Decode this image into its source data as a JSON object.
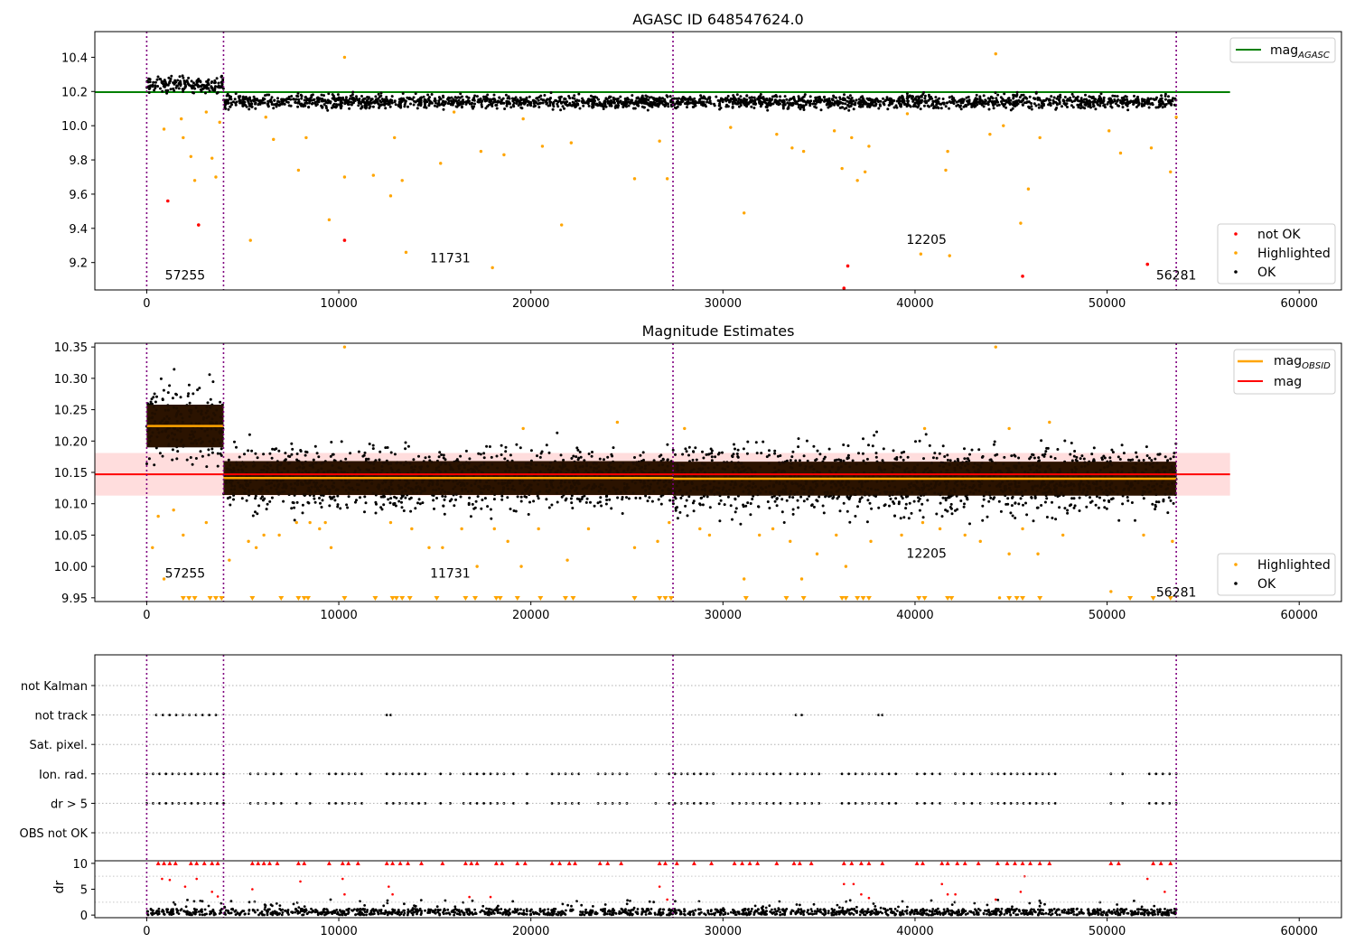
{
  "chart_data": [
    {
      "type": "scatter",
      "title": "AGASC ID 648547624.0",
      "xlim": [
        -2700,
        62200
      ],
      "ylim": [
        9.04,
        10.55
      ],
      "xticks": [
        0,
        10000,
        20000,
        30000,
        40000,
        50000,
        60000
      ],
      "yticks": [
        9.2,
        9.4,
        9.6,
        9.8,
        10.0,
        10.2,
        10.4
      ],
      "ytick_labels": [
        "9.2",
        "9.4",
        "9.6",
        "9.8",
        "10.0",
        "10.2",
        "10.4"
      ],
      "grid": false,
      "legend_lines": {
        "placement": "top-right",
        "entries": [
          {
            "name": "mag",
            "sub": "AGASC",
            "color": "#008000"
          }
        ]
      },
      "legend_points": {
        "placement": "bottom-right",
        "entries": [
          {
            "name": "not OK",
            "color": "#ff0000"
          },
          {
            "name": "Highlighted",
            "color": "#ffa500"
          },
          {
            "name": "OK",
            "color": "#000000"
          }
        ]
      },
      "reference_lines": [
        {
          "name": "mag_AGASC",
          "y": 10.196,
          "x_range": [
            -2700,
            56400
          ],
          "color": "#008000"
        }
      ],
      "obsid_boundaries": [
        0,
        4000,
        27400,
        53600
      ],
      "obsid_labels": [
        {
          "text": "57255",
          "x": 2000,
          "y": 9.1
        },
        {
          "text": "11731",
          "x": 15800,
          "y": 9.2
        },
        {
          "text": "12205",
          "x": 40600,
          "y": 9.31
        },
        {
          "text": "56281",
          "x": 53600,
          "y": 9.1
        }
      ],
      "segments": [
        {
          "x_range": [
            0,
            4000
          ],
          "center": 10.24,
          "spread": 0.04,
          "color": "#000000"
        },
        {
          "x_range": [
            4000,
            27400
          ],
          "center": 10.14,
          "spread": 0.035,
          "color": "#000000"
        },
        {
          "x_range": [
            27400,
            53600
          ],
          "center": 10.14,
          "spread": 0.035,
          "color": "#000000"
        }
      ],
      "highlighted_points": [
        [
          900,
          9.98
        ],
        [
          1800,
          10.04
        ],
        [
          1900,
          9.93
        ],
        [
          2300,
          9.82
        ],
        [
          2500,
          9.68
        ],
        [
          2700,
          9.42
        ],
        [
          3100,
          10.08
        ],
        [
          3400,
          9.81
        ],
        [
          3600,
          9.7
        ],
        [
          3800,
          10.02
        ],
        [
          5400,
          9.33
        ],
        [
          6200,
          10.05
        ],
        [
          6600,
          9.92
        ],
        [
          7900,
          9.74
        ],
        [
          8300,
          9.93
        ],
        [
          9500,
          9.45
        ],
        [
          10300,
          9.7
        ],
        [
          10300,
          10.4
        ],
        [
          11800,
          9.71
        ],
        [
          12700,
          9.59
        ],
        [
          12900,
          9.93
        ],
        [
          13300,
          9.68
        ],
        [
          13500,
          9.26
        ],
        [
          15300,
          9.78
        ],
        [
          16000,
          10.08
        ],
        [
          17400,
          9.85
        ],
        [
          18000,
          9.17
        ],
        [
          18600,
          9.83
        ],
        [
          19600,
          10.04
        ],
        [
          20600,
          9.88
        ],
        [
          21600,
          9.42
        ],
        [
          22100,
          9.9
        ],
        [
          25400,
          9.69
        ],
        [
          26700,
          9.91
        ],
        [
          27100,
          9.69
        ],
        [
          30400,
          9.99
        ],
        [
          31100,
          9.49
        ],
        [
          32800,
          9.95
        ],
        [
          33600,
          9.87
        ],
        [
          34200,
          9.85
        ],
        [
          35800,
          9.97
        ],
        [
          36200,
          9.75
        ],
        [
          36700,
          9.93
        ],
        [
          37000,
          9.68
        ],
        [
          37400,
          9.73
        ],
        [
          37600,
          9.88
        ],
        [
          39600,
          10.07
        ],
        [
          40300,
          9.25
        ],
        [
          41600,
          9.74
        ],
        [
          41700,
          9.85
        ],
        [
          41800,
          9.24
        ],
        [
          43900,
          9.95
        ],
        [
          44200,
          10.42
        ],
        [
          44600,
          10.0
        ],
        [
          45500,
          9.43
        ],
        [
          45900,
          9.63
        ],
        [
          46500,
          9.93
        ],
        [
          50100,
          9.97
        ],
        [
          50700,
          9.84
        ],
        [
          52300,
          9.87
        ],
        [
          53300,
          9.73
        ],
        [
          53600,
          10.05
        ]
      ],
      "not_ok_points": [
        [
          1100,
          9.56
        ],
        [
          2700,
          9.42
        ],
        [
          10300,
          9.33
        ],
        [
          36500,
          9.18
        ],
        [
          45600,
          9.12
        ],
        [
          52100,
          9.19
        ],
        [
          36300,
          9.05
        ]
      ]
    },
    {
      "type": "scatter",
      "title": "Magnitude Estimates",
      "xlim": [
        -2700,
        62200
      ],
      "ylim": [
        9.944,
        10.356
      ],
      "xticks": [
        0,
        10000,
        20000,
        30000,
        40000,
        50000,
        60000
      ],
      "yticks": [
        9.95,
        10.0,
        10.05,
        10.1,
        10.15,
        10.2,
        10.25,
        10.3,
        10.35
      ],
      "ytick_labels": [
        "9.95",
        "10.00",
        "10.05",
        "10.10",
        "10.15",
        "10.20",
        "10.25",
        "10.30",
        "10.35"
      ],
      "grid": false,
      "legend_lines": {
        "placement": "top-right",
        "entries": [
          {
            "name": "mag",
            "sub": "OBSID",
            "color": "#ffa500"
          },
          {
            "name": "mag",
            "sub": "",
            "color": "#ff0000"
          }
        ]
      },
      "legend_points": {
        "placement": "bottom-right",
        "entries": [
          {
            "name": "Highlighted",
            "color": "#ffa500"
          },
          {
            "name": "OK",
            "color": "#000000"
          }
        ]
      },
      "mag": {
        "value": 10.147,
        "band": [
          10.113,
          10.181
        ],
        "x_range": [
          -2700,
          56400
        ],
        "color": "#ff0000"
      },
      "mag_obsid": [
        {
          "x_range": [
            0,
            4000
          ],
          "value": 10.224,
          "band": [
            10.19,
            10.258
          ]
        },
        {
          "x_range": [
            4000,
            27400
          ],
          "value": 10.141,
          "band": [
            10.114,
            10.168
          ]
        },
        {
          "x_range": [
            27400,
            53600
          ],
          "value": 10.14,
          "band": [
            10.113,
            10.167
          ]
        }
      ],
      "obsid_boundaries": [
        0,
        4000,
        27400,
        53600
      ],
      "obsid_labels": [
        {
          "text": "57255",
          "x": 2000,
          "y": 9.982
        },
        {
          "text": "11731",
          "x": 15800,
          "y": 9.982
        },
        {
          "text": "12205",
          "x": 40600,
          "y": 10.014
        },
        {
          "text": "56281",
          "x": 53600,
          "y": 9.952
        }
      ],
      "segments": [
        {
          "x_range": [
            0,
            4000
          ],
          "center": 10.225,
          "spread": 0.05
        },
        {
          "x_range": [
            4000,
            27400
          ],
          "center": 10.14,
          "spread": 0.04
        },
        {
          "x_range": [
            27400,
            53600
          ],
          "center": 10.138,
          "spread": 0.045
        }
      ],
      "highlighted_points": [
        [
          300,
          10.03
        ],
        [
          600,
          10.08
        ],
        [
          900,
          9.98
        ],
        [
          1400,
          10.09
        ],
        [
          1900,
          10.05
        ],
        [
          3100,
          10.07
        ],
        [
          4300,
          10.01
        ],
        [
          5300,
          10.04
        ],
        [
          5700,
          10.03
        ],
        [
          6100,
          10.05
        ],
        [
          6900,
          10.05
        ],
        [
          7800,
          10.07
        ],
        [
          8500,
          10.07
        ],
        [
          9000,
          10.06
        ],
        [
          9300,
          10.07
        ],
        [
          9600,
          10.03
        ],
        [
          12700,
          10.07
        ],
        [
          13800,
          10.06
        ],
        [
          14700,
          10.03
        ],
        [
          15400,
          10.03
        ],
        [
          16400,
          10.06
        ],
        [
          17200,
          10.0
        ],
        [
          18100,
          10.06
        ],
        [
          18800,
          10.04
        ],
        [
          19500,
          10.0
        ],
        [
          20400,
          10.06
        ],
        [
          21900,
          10.01
        ],
        [
          23000,
          10.06
        ],
        [
          25400,
          10.03
        ],
        [
          26600,
          10.04
        ],
        [
          27200,
          10.07
        ],
        [
          28800,
          10.06
        ],
        [
          29300,
          10.05
        ],
        [
          31100,
          9.98
        ],
        [
          31900,
          10.05
        ],
        [
          32600,
          10.06
        ],
        [
          33500,
          10.04
        ],
        [
          34100,
          9.98
        ],
        [
          34900,
          10.02
        ],
        [
          35900,
          10.05
        ],
        [
          36400,
          10.0
        ],
        [
          37700,
          10.04
        ],
        [
          39300,
          10.05
        ],
        [
          40400,
          10.07
        ],
        [
          41300,
          10.06
        ],
        [
          42600,
          10.05
        ],
        [
          43400,
          10.04
        ],
        [
          44400,
          9.95
        ],
        [
          44900,
          10.02
        ],
        [
          45600,
          10.06
        ],
        [
          46400,
          10.02
        ],
        [
          47700,
          10.05
        ],
        [
          50200,
          9.96
        ],
        [
          51900,
          10.05
        ],
        [
          53400,
          10.04
        ]
      ],
      "highlighted_top": [
        [
          10300,
          10.35
        ],
        [
          44200,
          10.35
        ],
        [
          24500,
          10.23
        ],
        [
          28000,
          10.22
        ],
        [
          47000,
          10.23
        ],
        [
          19600,
          10.22
        ],
        [
          40500,
          10.22
        ],
        [
          44900,
          10.22
        ]
      ],
      "below_range_markers_x": [
        1900,
        2200,
        2500,
        3300,
        3600,
        3900,
        5500,
        7000,
        7900,
        8200,
        8400,
        10300,
        11900,
        12800,
        13000,
        13300,
        13700,
        15100,
        16600,
        17100,
        18200,
        18400,
        19300,
        20500,
        21800,
        22200,
        25400,
        26700,
        27000,
        27300,
        31200,
        33300,
        34200,
        36200,
        36400,
        37000,
        37300,
        37600,
        40200,
        40500,
        41700,
        41900,
        44900,
        45300,
        45600,
        46500,
        51200,
        52400,
        53300
      ]
    },
    {
      "type": "scatter",
      "title": "",
      "xlim": [
        -2700,
        62200
      ],
      "xticks": [
        0,
        10000,
        20000,
        30000,
        40000,
        50000,
        60000
      ],
      "flag_rows": [
        "not Kalman",
        "not track",
        "Sat. pixel.",
        "Ion. rad.",
        "dr > 5",
        "OBS not OK"
      ],
      "flag_occurrences": {
        "not track": [
          [
            500,
            3600
          ],
          [
            12500,
            12700
          ],
          [
            33800,
            34100
          ],
          [
            38100,
            38300
          ]
        ],
        "Ion. rad.": [
          [
            0,
            4000
          ],
          [
            5400,
            7000
          ],
          [
            7800,
            8500
          ],
          [
            9500,
            11200
          ],
          [
            12500,
            14500
          ],
          [
            15300,
            15800
          ],
          [
            16500,
            18600
          ],
          [
            19100,
            19800
          ],
          [
            21100,
            22500
          ],
          [
            23500,
            25000
          ],
          [
            26500,
            27200
          ],
          [
            27500,
            29500
          ],
          [
            30500,
            33000
          ],
          [
            33500,
            35000
          ],
          [
            36200,
            39000
          ],
          [
            40100,
            41300
          ],
          [
            42100,
            43400
          ],
          [
            44000,
            47300
          ],
          [
            50200,
            50800
          ],
          [
            52200,
            53600
          ]
        ],
        "dr > 5": [
          [
            0,
            4000
          ],
          [
            5400,
            7000
          ],
          [
            7800,
            8500
          ],
          [
            9500,
            11200
          ],
          [
            12500,
            14500
          ],
          [
            15300,
            15800
          ],
          [
            16500,
            18600
          ],
          [
            19100,
            19800
          ],
          [
            21100,
            22500
          ],
          [
            23500,
            25000
          ],
          [
            26500,
            27200
          ],
          [
            27500,
            29500
          ],
          [
            30500,
            33000
          ],
          [
            33500,
            35000
          ],
          [
            36200,
            39000
          ],
          [
            40100,
            41300
          ],
          [
            42100,
            43400
          ],
          [
            44000,
            47300
          ],
          [
            50200,
            50800
          ],
          [
            52200,
            53600
          ]
        ]
      },
      "dr_panel": {
        "ylabel": "dr",
        "yticks": [
          0,
          5,
          10
        ],
        "ylim": [
          -0.5,
          10.5
        ],
        "clip_value": 10,
        "ok_baseline": [
          0,
          1.2
        ],
        "red_points": [
          [
            800,
            7
          ],
          [
            1200,
            6.8
          ],
          [
            2000,
            5.5
          ],
          [
            2600,
            7
          ],
          [
            3400,
            4.5
          ],
          [
            3700,
            3.6
          ],
          [
            5500,
            5
          ],
          [
            8000,
            6.5
          ],
          [
            10200,
            7
          ],
          [
            10300,
            4
          ],
          [
            12600,
            5.5
          ],
          [
            12800,
            4
          ],
          [
            16800,
            3.5
          ],
          [
            17900,
            3.5
          ],
          [
            26700,
            5.5
          ],
          [
            27100,
            3
          ],
          [
            36300,
            6
          ],
          [
            36800,
            6
          ],
          [
            37200,
            4
          ],
          [
            37600,
            3.3
          ],
          [
            41400,
            6
          ],
          [
            41700,
            4
          ],
          [
            42100,
            4
          ],
          [
            44200,
            3
          ],
          [
            45500,
            4.5
          ],
          [
            45700,
            7.5
          ],
          [
            52100,
            7
          ],
          [
            53000,
            4.5
          ]
        ],
        "clipped_x": [
          600,
          900,
          1200,
          1500,
          2300,
          2600,
          3000,
          3400,
          3700,
          5500,
          5800,
          6100,
          6400,
          6800,
          7900,
          8200,
          9500,
          10200,
          10500,
          11000,
          12500,
          12800,
          13200,
          13600,
          14300,
          15400,
          16600,
          16900,
          17200,
          18200,
          18500,
          19300,
          19700,
          21100,
          21500,
          22000,
          22300,
          23600,
          24000,
          24700,
          26700,
          27000,
          27600,
          28500,
          29400,
          30600,
          31000,
          31400,
          31800,
          32800,
          33700,
          34000,
          34600,
          36300,
          36700,
          37200,
          37600,
          38300,
          40100,
          40400,
          41400,
          41700,
          42200,
          42600,
          43300,
          44300,
          44800,
          45200,
          45600,
          46000,
          46500,
          47000,
          50200,
          50600,
          52400,
          52800,
          53300
        ]
      }
    }
  ]
}
